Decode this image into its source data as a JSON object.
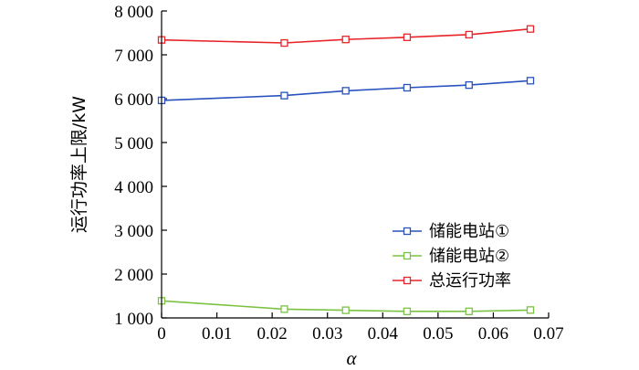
{
  "chart_data": {
    "type": "line",
    "xlabel": "α",
    "ylabel": "运行功率上限/kW",
    "xlim": [
      0,
      0.07
    ],
    "ylim": [
      1000,
      8000
    ],
    "x_ticks": [
      "0",
      "0.01",
      "0.02",
      "0.03",
      "0.04",
      "0.05",
      "0.06",
      "0.07"
    ],
    "y_ticks": [
      "1 000",
      "2 000",
      "3 000",
      "4 000",
      "5 000",
      "6 000",
      "7 000",
      "8 000"
    ],
    "x_tick_values": [
      0,
      0.01,
      0.02,
      0.03,
      0.04,
      0.05,
      0.06,
      0.07
    ],
    "y_tick_values": [
      1000,
      2000,
      3000,
      4000,
      5000,
      6000,
      7000,
      8000
    ],
    "x": [
      0,
      0.0222,
      0.0333,
      0.0444,
      0.0556,
      0.0667
    ],
    "series": [
      {
        "name": "储能电站①",
        "color": "#2a52be",
        "values": [
          5960,
          6070,
          6180,
          6250,
          6310,
          6410
        ]
      },
      {
        "name": "储能电站②",
        "color": "#7cc242",
        "values": [
          1390,
          1200,
          1175,
          1150,
          1150,
          1180
        ]
      },
      {
        "name": "总运行功率",
        "color": "#e8232a",
        "values": [
          7340,
          7270,
          7350,
          7400,
          7460,
          7590
        ]
      }
    ],
    "legend_position": "bottom-right",
    "grid": false
  }
}
